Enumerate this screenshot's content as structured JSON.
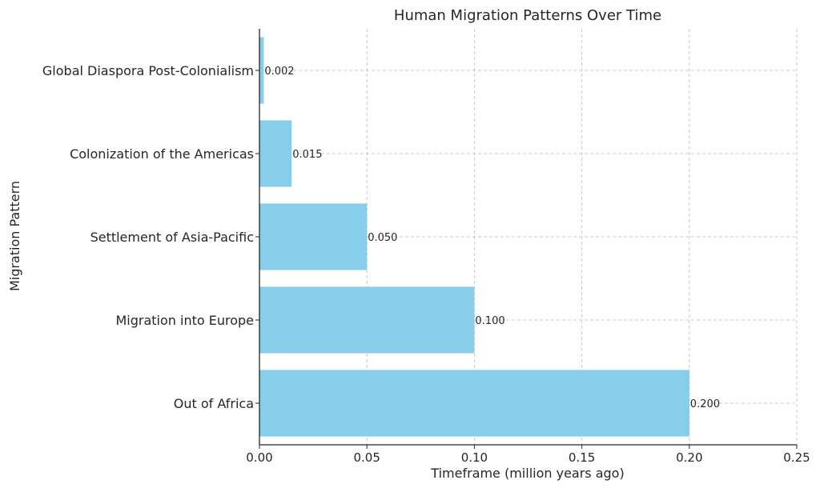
{
  "chart_data": {
    "type": "bar",
    "orientation": "horizontal",
    "title": "Human Migration Patterns Over Time",
    "xlabel": "Timeframe (million years ago)",
    "ylabel": "Migration Pattern",
    "categories": [
      "Out of Africa",
      "Migration into Europe",
      "Settlement of Asia-Pacific",
      "Colonization of the Americas",
      "Global Diaspora Post-Colonialism"
    ],
    "values": [
      0.2,
      0.1,
      0.05,
      0.015,
      0.002
    ],
    "value_labels": [
      "0.200",
      "0.100",
      "0.050",
      "0.015",
      "0.002"
    ],
    "xlim": [
      0,
      0.25
    ],
    "xticks": [
      0.0,
      0.05,
      0.1,
      0.15,
      0.2,
      0.25
    ],
    "xtick_labels": [
      "0.00",
      "0.05",
      "0.10",
      "0.15",
      "0.20",
      "0.25"
    ],
    "grid": true,
    "legend": "none",
    "bar_color": "#87ceeb"
  }
}
